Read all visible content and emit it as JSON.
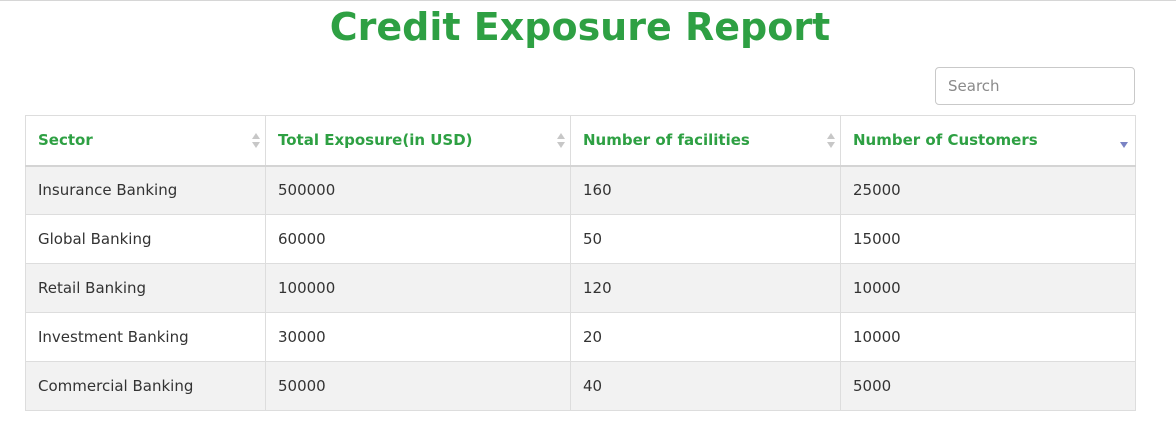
{
  "page": {
    "title": "Credit Exposure Report"
  },
  "search": {
    "placeholder": "Search",
    "value": ""
  },
  "table": {
    "columns": [
      {
        "label": "Sector",
        "sort": "none"
      },
      {
        "label": "Total Exposure(in USD)",
        "sort": "none"
      },
      {
        "label": "Number of facilities",
        "sort": "none"
      },
      {
        "label": "Number of Customers",
        "sort": "descending"
      }
    ],
    "rows": [
      [
        "Insurance Banking",
        "500000",
        "160",
        "25000"
      ],
      [
        "Global Banking",
        "60000",
        "50",
        "15000"
      ],
      [
        "Retail Banking",
        "100000",
        "120",
        "10000"
      ],
      [
        "Investment Banking",
        "30000",
        "20",
        "10000"
      ],
      [
        "Commercial Banking",
        "50000",
        "40",
        "5000"
      ]
    ]
  },
  "colors": {
    "accent": "#2ea043",
    "sort_active": "#7a83c4",
    "row_alt": "#f2f2f2"
  },
  "icons": {
    "sort_neutral": "sort-arrows-icon",
    "sort_desc": "sort-descending-icon"
  }
}
